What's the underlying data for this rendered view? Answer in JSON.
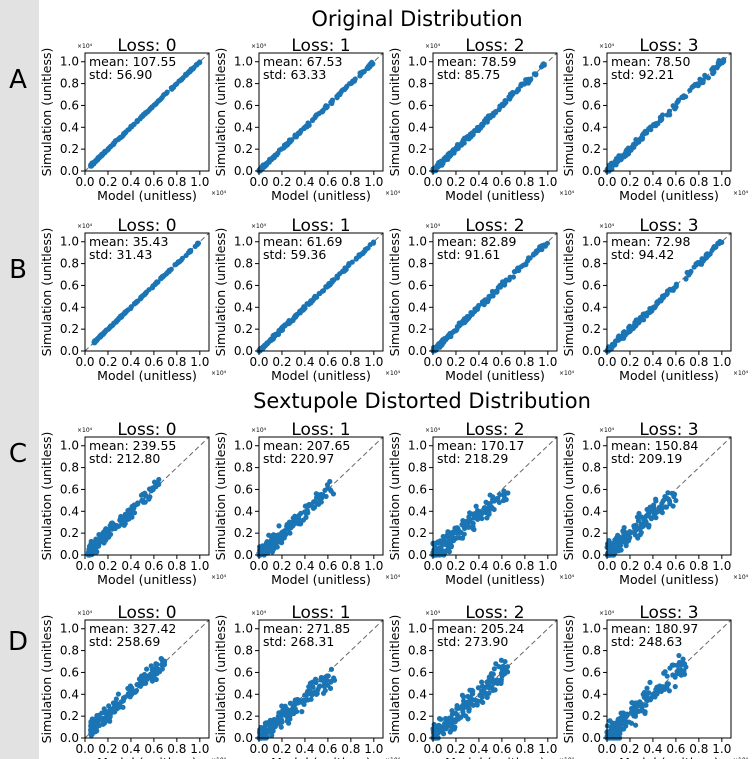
{
  "section_titles": [
    "Original Distribution",
    "Sextupole Distorted Distribution"
  ],
  "row_labels": [
    "A",
    "B",
    "C",
    "D"
  ],
  "axis": {
    "xlabel": "Model (unitless)",
    "ylabel": "Simulation (unitless)",
    "exponent": "×10⁴",
    "ticks": [
      0.0,
      0.2,
      0.4,
      0.6,
      0.8,
      1.0
    ],
    "tick_labels": [
      "0.0",
      "0.2",
      "0.4",
      "0.6",
      "0.8",
      "1.0"
    ],
    "xlim": [
      0,
      1.08
    ],
    "ylim": [
      0,
      1.08
    ]
  },
  "colors": {
    "point": "#1b75b5",
    "identity": "#666666",
    "axes": "#000000",
    "strip": "#e2e2e2"
  },
  "chart_data": [
    {
      "row": "A",
      "type": "scatter",
      "title": "Loss: 0",
      "mean_label": "mean: 107.55",
      "std_label": "std: 56.90",
      "xrange": [
        0.05,
        1.0
      ],
      "yrange": [
        0.05,
        1.0
      ],
      "spread": 0.006,
      "n": 160,
      "identity": [
        [
          0,
          0
        ],
        [
          1.08,
          1.08
        ]
      ]
    },
    {
      "row": "A",
      "type": "scatter",
      "title": "Loss: 1",
      "mean_label": "mean: 67.53",
      "std_label": "std: 63.33",
      "xrange": [
        0.0,
        1.0
      ],
      "yrange": [
        0.0,
        1.0
      ],
      "spread": 0.01,
      "n": 160,
      "identity": [
        [
          0,
          0
        ],
        [
          1.08,
          1.08
        ]
      ]
    },
    {
      "row": "A",
      "type": "scatter",
      "title": "Loss: 2",
      "mean_label": "mean: 78.59",
      "std_label": "std: 85.75",
      "xrange": [
        0.0,
        0.97
      ],
      "yrange": [
        0.0,
        0.97
      ],
      "spread": 0.015,
      "n": 160,
      "identity": [
        [
          0,
          0
        ],
        [
          1.08,
          1.08
        ]
      ]
    },
    {
      "row": "A",
      "type": "scatter",
      "title": "Loss: 3",
      "mean_label": "mean: 78.50",
      "std_label": "std: 92.21",
      "xrange": [
        0.0,
        1.02
      ],
      "yrange": [
        0.0,
        1.02
      ],
      "spread": 0.02,
      "n": 160,
      "identity": [
        [
          0,
          0
        ],
        [
          1.08,
          1.08
        ]
      ]
    },
    {
      "row": "B",
      "type": "scatter",
      "title": "Loss: 0",
      "mean_label": "mean: 35.43",
      "std_label": "std: 31.43",
      "xrange": [
        0.08,
        1.0
      ],
      "yrange": [
        0.08,
        1.0
      ],
      "spread": 0.005,
      "n": 160,
      "identity": [
        [
          0,
          0
        ],
        [
          1.08,
          1.08
        ]
      ]
    },
    {
      "row": "B",
      "type": "scatter",
      "title": "Loss: 1",
      "mean_label": "mean: 61.69",
      "std_label": "std: 59.36",
      "xrange": [
        0.0,
        1.0
      ],
      "yrange": [
        0.0,
        1.0
      ],
      "spread": 0.01,
      "n": 160,
      "identity": [
        [
          0,
          0
        ],
        [
          1.08,
          1.08
        ]
      ]
    },
    {
      "row": "B",
      "type": "scatter",
      "title": "Loss: 2",
      "mean_label": "mean: 82.89",
      "std_label": "std: 91.61",
      "xrange": [
        0.0,
        1.02
      ],
      "yrange": [
        0.0,
        1.02
      ],
      "spread": 0.016,
      "n": 160,
      "identity": [
        [
          0,
          0
        ],
        [
          1.08,
          1.08
        ]
      ]
    },
    {
      "row": "B",
      "type": "scatter",
      "title": "Loss: 3",
      "mean_label": "mean: 72.98",
      "std_label": "std: 94.42",
      "xrange": [
        0.0,
        1.02
      ],
      "yrange": [
        0.0,
        1.02
      ],
      "spread": 0.02,
      "n": 160,
      "identity": [
        [
          0,
          0
        ],
        [
          1.08,
          1.08
        ]
      ]
    },
    {
      "row": "C",
      "type": "scatter",
      "title": "Loss: 0",
      "mean_label": "mean: 239.55",
      "std_label": "std: 212.80",
      "xrange": [
        0.03,
        0.66
      ],
      "yrange": [
        0.03,
        0.67
      ],
      "spread": 0.04,
      "n": 160,
      "identity": [
        [
          0,
          0
        ],
        [
          1.08,
          1.08
        ]
      ]
    },
    {
      "row": "C",
      "type": "scatter",
      "title": "Loss: 1",
      "mean_label": "mean: 207.65",
      "std_label": "std: 220.97",
      "xrange": [
        0.0,
        0.66
      ],
      "yrange": [
        0.0,
        0.66
      ],
      "spread": 0.05,
      "n": 160,
      "identity": [
        [
          0,
          0
        ],
        [
          1.08,
          1.08
        ]
      ]
    },
    {
      "row": "C",
      "type": "scatter",
      "title": "Loss: 2",
      "mean_label": "mean: 170.17",
      "std_label": "std: 218.29",
      "xrange": [
        0.0,
        0.66
      ],
      "yrange": [
        0.0,
        0.6
      ],
      "spread": 0.06,
      "n": 160,
      "identity": [
        [
          0,
          0
        ],
        [
          1.08,
          1.08
        ]
      ]
    },
    {
      "row": "C",
      "type": "scatter",
      "title": "Loss: 3",
      "mean_label": "mean: 150.84",
      "std_label": "std: 209.19",
      "xrange": [
        0.0,
        0.6
      ],
      "yrange": [
        0.0,
        0.57
      ],
      "spread": 0.06,
      "n": 160,
      "identity": [
        [
          0,
          0
        ],
        [
          1.08,
          1.08
        ]
      ]
    },
    {
      "row": "D",
      "type": "scatter",
      "title": "Loss: 0",
      "mean_label": "mean: 327.42",
      "std_label": "std: 258.69",
      "xrange": [
        0.05,
        0.7
      ],
      "yrange": [
        0.08,
        0.7
      ],
      "spread": 0.05,
      "n": 170,
      "identity": [
        [
          0,
          0
        ],
        [
          1.08,
          1.08
        ]
      ]
    },
    {
      "row": "D",
      "type": "scatter",
      "title": "Loss: 1",
      "mean_label": "mean: 271.85",
      "std_label": "std: 268.31",
      "xrange": [
        0.0,
        0.66
      ],
      "yrange": [
        0.0,
        0.6
      ],
      "spread": 0.06,
      "n": 170,
      "identity": [
        [
          0,
          0
        ],
        [
          1.08,
          1.08
        ]
      ]
    },
    {
      "row": "D",
      "type": "scatter",
      "title": "Loss: 2",
      "mean_label": "mean: 205.24",
      "std_label": "std: 273.90",
      "xrange": [
        0.0,
        0.66
      ],
      "yrange": [
        0.0,
        0.66
      ],
      "spread": 0.07,
      "n": 170,
      "identity": [
        [
          0,
          0
        ],
        [
          1.08,
          1.08
        ]
      ]
    },
    {
      "row": "D",
      "type": "scatter",
      "title": "Loss: 3",
      "mean_label": "mean: 180.97",
      "std_label": "std: 248.63",
      "xrange": [
        0.0,
        0.7
      ],
      "yrange": [
        0.0,
        0.7
      ],
      "spread": 0.07,
      "n": 170,
      "identity": [
        [
          0,
          0
        ],
        [
          1.08,
          1.08
        ]
      ]
    }
  ]
}
